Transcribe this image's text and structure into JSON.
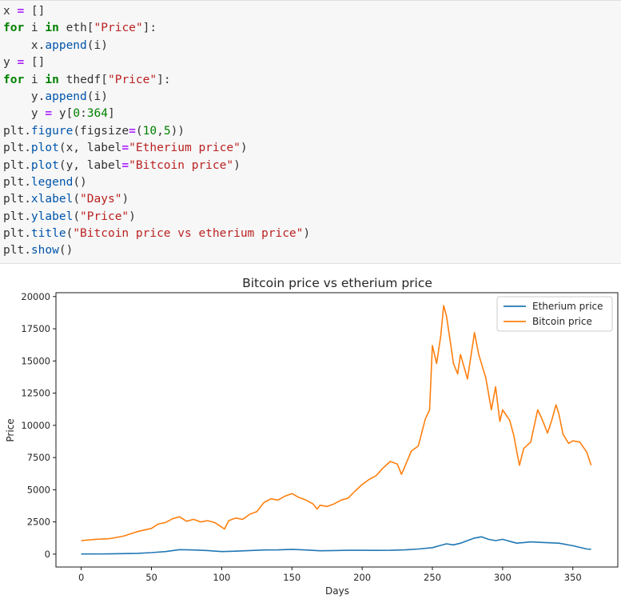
{
  "code_cell": {
    "lines": [
      [
        {
          "t": "x ",
          "c": "plain"
        },
        {
          "t": "=",
          "c": "op"
        },
        {
          "t": " []",
          "c": "plain"
        }
      ],
      [
        {
          "t": "for",
          "c": "kw"
        },
        {
          "t": " i ",
          "c": "plain"
        },
        {
          "t": "in",
          "c": "kw"
        },
        {
          "t": " eth[",
          "c": "plain"
        },
        {
          "t": "\"Price\"",
          "c": "str"
        },
        {
          "t": "]:",
          "c": "plain"
        }
      ],
      [
        {
          "t": "    x.",
          "c": "plain"
        },
        {
          "t": "append",
          "c": "attr"
        },
        {
          "t": "(i)",
          "c": "plain"
        }
      ],
      [
        {
          "t": "y ",
          "c": "plain"
        },
        {
          "t": "=",
          "c": "op"
        },
        {
          "t": " []",
          "c": "plain"
        }
      ],
      [
        {
          "t": "for",
          "c": "kw"
        },
        {
          "t": " i ",
          "c": "plain"
        },
        {
          "t": "in",
          "c": "kw"
        },
        {
          "t": " thedf[",
          "c": "plain"
        },
        {
          "t": "\"Price\"",
          "c": "str"
        },
        {
          "t": "]:",
          "c": "plain"
        }
      ],
      [
        {
          "t": "    y.",
          "c": "plain"
        },
        {
          "t": "append",
          "c": "attr"
        },
        {
          "t": "(i)",
          "c": "plain"
        }
      ],
      [
        {
          "t": "    y ",
          "c": "plain"
        },
        {
          "t": "=",
          "c": "op"
        },
        {
          "t": " y[",
          "c": "plain"
        },
        {
          "t": "0",
          "c": "num"
        },
        {
          "t": ":",
          "c": "plain"
        },
        {
          "t": "364",
          "c": "num"
        },
        {
          "t": "]",
          "c": "plain"
        }
      ],
      [
        {
          "t": "plt.",
          "c": "plain"
        },
        {
          "t": "figure",
          "c": "attr"
        },
        {
          "t": "(figsize",
          "c": "plain"
        },
        {
          "t": "=",
          "c": "op"
        },
        {
          "t": "(",
          "c": "plain"
        },
        {
          "t": "10",
          "c": "num"
        },
        {
          "t": ",",
          "c": "plain"
        },
        {
          "t": "5",
          "c": "num"
        },
        {
          "t": "))",
          "c": "plain"
        }
      ],
      [
        {
          "t": "plt.",
          "c": "plain"
        },
        {
          "t": "plot",
          "c": "attr"
        },
        {
          "t": "(x, label",
          "c": "plain"
        },
        {
          "t": "=",
          "c": "op"
        },
        {
          "t": "\"Etherium price\"",
          "c": "str"
        },
        {
          "t": ")",
          "c": "plain"
        }
      ],
      [
        {
          "t": "plt.",
          "c": "plain"
        },
        {
          "t": "plot",
          "c": "attr"
        },
        {
          "t": "(y, label",
          "c": "plain"
        },
        {
          "t": "=",
          "c": "op"
        },
        {
          "t": "\"Bitcoin price\"",
          "c": "str"
        },
        {
          "t": ")",
          "c": "plain"
        }
      ],
      [
        {
          "t": "plt.",
          "c": "plain"
        },
        {
          "t": "legend",
          "c": "attr"
        },
        {
          "t": "()",
          "c": "plain"
        }
      ],
      [
        {
          "t": "plt.",
          "c": "plain"
        },
        {
          "t": "xlabel",
          "c": "attr"
        },
        {
          "t": "(",
          "c": "plain"
        },
        {
          "t": "\"Days\"",
          "c": "str"
        },
        {
          "t": ")",
          "c": "plain"
        }
      ],
      [
        {
          "t": "plt.",
          "c": "plain"
        },
        {
          "t": "ylabel",
          "c": "attr"
        },
        {
          "t": "(",
          "c": "plain"
        },
        {
          "t": "\"Price\"",
          "c": "str"
        },
        {
          "t": ")",
          "c": "plain"
        }
      ],
      [
        {
          "t": "plt.",
          "c": "plain"
        },
        {
          "t": "title",
          "c": "attr"
        },
        {
          "t": "(",
          "c": "plain"
        },
        {
          "t": "\"Bitcoin price vs etherium price\"",
          "c": "str"
        },
        {
          "t": ")",
          "c": "plain"
        }
      ],
      [
        {
          "t": "plt.",
          "c": "plain"
        },
        {
          "t": "show",
          "c": "attr"
        },
        {
          "t": "()",
          "c": "plain"
        }
      ]
    ]
  },
  "chart_data": {
    "type": "line",
    "title": "Bitcoin price vs etherium price",
    "xlabel": "Days",
    "ylabel": "Price",
    "xlim": [
      -18,
      382
    ],
    "ylim": [
      -1000,
      20300
    ],
    "xticks": [
      0,
      50,
      100,
      150,
      200,
      250,
      300,
      350
    ],
    "yticks": [
      0,
      2500,
      5000,
      7500,
      10000,
      12500,
      15000,
      17500,
      20000
    ],
    "ytick_labels": [
      "0",
      "2500",
      "5000",
      "7500",
      "10000",
      "12500",
      "15000",
      "17500",
      "20000"
    ],
    "legend_position": "top-right",
    "grid": false,
    "series": [
      {
        "name": "Etherium price",
        "color": "#1f77b4",
        "points": [
          [
            0,
            10
          ],
          [
            20,
            20
          ],
          [
            40,
            60
          ],
          [
            50,
            120
          ],
          [
            60,
            200
          ],
          [
            70,
            350
          ],
          [
            80,
            320
          ],
          [
            90,
            280
          ],
          [
            100,
            200
          ],
          [
            110,
            230
          ],
          [
            120,
            280
          ],
          [
            130,
            320
          ],
          [
            140,
            330
          ],
          [
            150,
            370
          ],
          [
            160,
            320
          ],
          [
            170,
            260
          ],
          [
            180,
            280
          ],
          [
            190,
            300
          ],
          [
            200,
            300
          ],
          [
            210,
            290
          ],
          [
            220,
            300
          ],
          [
            230,
            330
          ],
          [
            240,
            400
          ],
          [
            250,
            500
          ],
          [
            255,
            650
          ],
          [
            260,
            800
          ],
          [
            265,
            720
          ],
          [
            270,
            850
          ],
          [
            275,
            1050
          ],
          [
            280,
            1250
          ],
          [
            285,
            1350
          ],
          [
            290,
            1150
          ],
          [
            295,
            1050
          ],
          [
            300,
            1150
          ],
          [
            305,
            1000
          ],
          [
            310,
            850
          ],
          [
            315,
            900
          ],
          [
            320,
            950
          ],
          [
            330,
            900
          ],
          [
            340,
            850
          ],
          [
            350,
            650
          ],
          [
            360,
            400
          ],
          [
            363,
            380
          ]
        ]
      },
      {
        "name": "Bitcoin price",
        "color": "#ff7f0e",
        "points": [
          [
            0,
            1050
          ],
          [
            10,
            1150
          ],
          [
            20,
            1200
          ],
          [
            30,
            1400
          ],
          [
            40,
            1750
          ],
          [
            50,
            2000
          ],
          [
            55,
            2350
          ],
          [
            60,
            2450
          ],
          [
            65,
            2750
          ],
          [
            70,
            2900
          ],
          [
            75,
            2550
          ],
          [
            80,
            2700
          ],
          [
            85,
            2500
          ],
          [
            90,
            2600
          ],
          [
            95,
            2450
          ],
          [
            100,
            2100
          ],
          [
            102,
            1950
          ],
          [
            105,
            2600
          ],
          [
            110,
            2800
          ],
          [
            115,
            2700
          ],
          [
            120,
            3100
          ],
          [
            125,
            3300
          ],
          [
            130,
            4000
          ],
          [
            135,
            4300
          ],
          [
            140,
            4200
          ],
          [
            145,
            4500
          ],
          [
            150,
            4700
          ],
          [
            155,
            4400
          ],
          [
            160,
            4200
          ],
          [
            165,
            3900
          ],
          [
            168,
            3500
          ],
          [
            170,
            3800
          ],
          [
            175,
            3700
          ],
          [
            180,
            3900
          ],
          [
            185,
            4200
          ],
          [
            190,
            4350
          ],
          [
            195,
            4900
          ],
          [
            200,
            5400
          ],
          [
            205,
            5800
          ],
          [
            210,
            6100
          ],
          [
            215,
            6700
          ],
          [
            220,
            7200
          ],
          [
            225,
            7000
          ],
          [
            228,
            6200
          ],
          [
            230,
            6700
          ],
          [
            235,
            8000
          ],
          [
            240,
            8400
          ],
          [
            245,
            10500
          ],
          [
            248,
            11200
          ],
          [
            250,
            16200
          ],
          [
            253,
            14800
          ],
          [
            256,
            17000
          ],
          [
            258,
            19300
          ],
          [
            260,
            18500
          ],
          [
            263,
            16300
          ],
          [
            265,
            14800
          ],
          [
            268,
            14000
          ],
          [
            270,
            15500
          ],
          [
            275,
            13600
          ],
          [
            280,
            17200
          ],
          [
            283,
            15500
          ],
          [
            288,
            13700
          ],
          [
            292,
            11200
          ],
          [
            295,
            13000
          ],
          [
            298,
            10300
          ],
          [
            300,
            11200
          ],
          [
            305,
            10400
          ],
          [
            308,
            9200
          ],
          [
            310,
            8000
          ],
          [
            312,
            6900
          ],
          [
            315,
            8200
          ],
          [
            320,
            8700
          ],
          [
            325,
            11200
          ],
          [
            328,
            10500
          ],
          [
            332,
            9400
          ],
          [
            335,
            10400
          ],
          [
            338,
            11600
          ],
          [
            340,
            10900
          ],
          [
            343,
            9300
          ],
          [
            347,
            8600
          ],
          [
            350,
            8800
          ],
          [
            355,
            8700
          ],
          [
            360,
            7900
          ],
          [
            363,
            6900
          ]
        ]
      }
    ]
  }
}
